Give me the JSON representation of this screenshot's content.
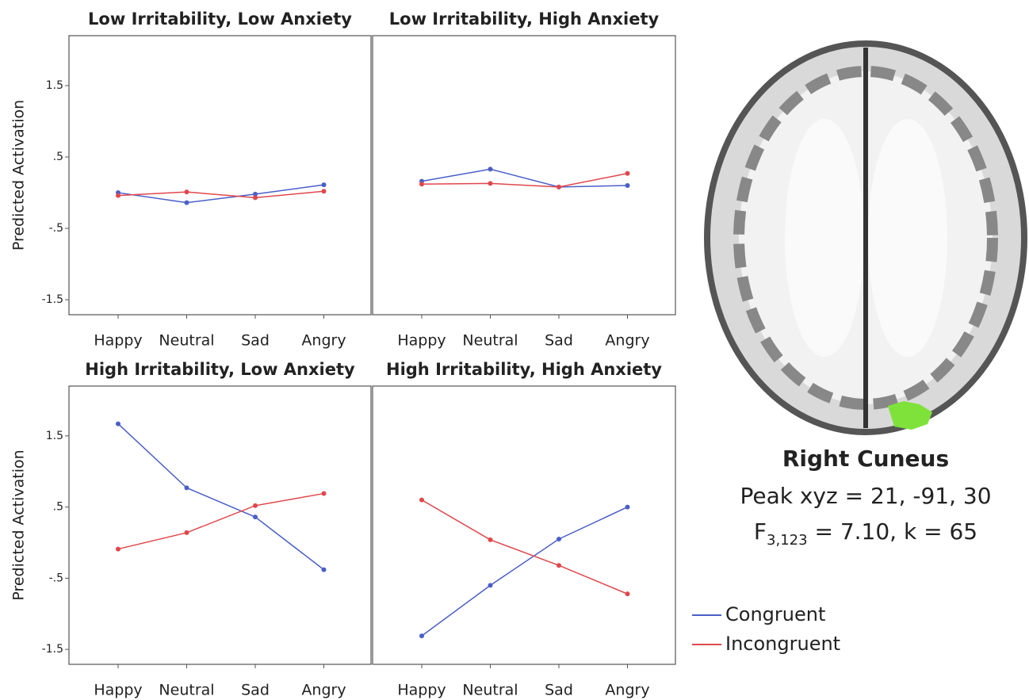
{
  "chart_data": [
    {
      "type": "line",
      "title": "Low Irritability, Low Anxiety",
      "ylabel": "Predicted Activation",
      "categories": [
        "Happy",
        "Neutral",
        "Sad",
        "Angry"
      ],
      "series": [
        {
          "name": "Congruent",
          "color": "#4a5fc8",
          "values": [
            0.0,
            -0.14,
            -0.02,
            0.11
          ]
        },
        {
          "name": "Incongruent",
          "color": "#e0474c",
          "values": [
            -0.04,
            0.01,
            -0.07,
            0.02
          ]
        }
      ],
      "ylim": [
        -1.71,
        2.2
      ],
      "yticks": [
        1.5,
        {
          "value": 0.5,
          "label": ".5"
        },
        {
          "value": -0.5,
          "label": "-.5"
        },
        -1.5
      ]
    },
    {
      "type": "line",
      "title": "Low Irritability, High Anxiety",
      "categories": [
        "Happy",
        "Neutral",
        "Sad",
        "Angry"
      ],
      "series": [
        {
          "name": "Congruent",
          "color": "#4a5fc8",
          "values": [
            0.16,
            0.33,
            0.08,
            0.1
          ]
        },
        {
          "name": "Incongruent",
          "color": "#e0474c",
          "values": [
            0.12,
            0.13,
            0.08,
            0.27
          ]
        }
      ],
      "ylim": [
        -1.71,
        2.2
      ]
    },
    {
      "type": "line",
      "title": "High Irritability, Low Anxiety",
      "ylabel": "Predicted Activation",
      "categories": [
        "Happy",
        "Neutral",
        "Sad",
        "Angry"
      ],
      "series": [
        {
          "name": "Congruent",
          "color": "#4a5fc8",
          "values": [
            1.67,
            0.77,
            0.36,
            -0.38
          ]
        },
        {
          "name": "Incongruent",
          "color": "#e0474c",
          "values": [
            -0.09,
            0.14,
            0.52,
            0.69
          ]
        }
      ],
      "ylim": [
        -1.71,
        2.2
      ],
      "yticks": [
        1.5,
        {
          "value": 0.5,
          "label": ".5"
        },
        {
          "value": -0.5,
          "label": "-.5"
        },
        -1.5
      ]
    },
    {
      "type": "line",
      "title": "High Irritability, High Anxiety",
      "categories": [
        "Happy",
        "Neutral",
        "Sad",
        "Angry"
      ],
      "series": [
        {
          "name": "Congruent",
          "color": "#4a5fc8",
          "values": [
            -1.31,
            -0.6,
            0.05,
            0.5
          ]
        },
        {
          "name": "Incongruent",
          "color": "#e0474c",
          "values": [
            0.6,
            0.04,
            -0.32,
            -0.72
          ]
        }
      ],
      "ylim": [
        -1.71,
        2.2
      ]
    }
  ],
  "caption": {
    "region": "Right Cuneus",
    "peak": "Peak xyz = 21, -91, 30",
    "stat": "F",
    "stat_sub": "3,123",
    "stat_rest": " = 7.10, k = 65"
  }
}
